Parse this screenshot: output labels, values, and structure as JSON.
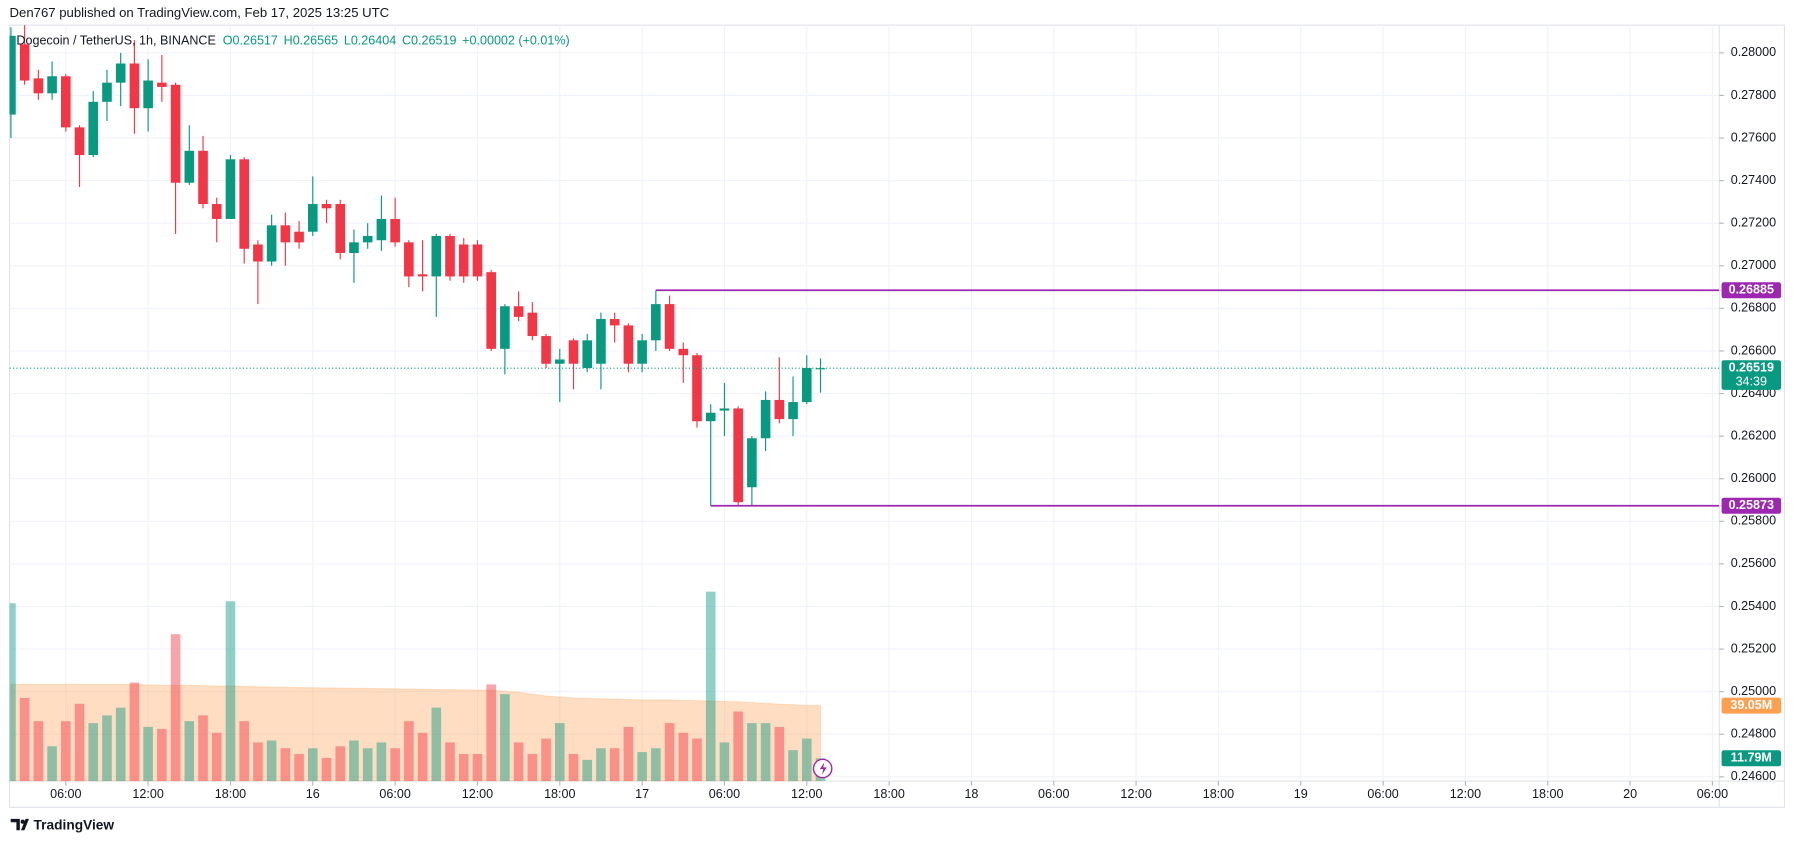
{
  "header": "Den767 published on TradingView.com, Feb 17, 2025 13:25 UTC",
  "footer": "TradingView",
  "chart_data": {
    "type": "candlestick",
    "title": "Dogecoin / TetherUS, 1h, BINANCE",
    "legend_values": [
      "O0.26517",
      "H0.26565",
      "L0.26404",
      "C0.26519",
      "+0.00002 (+0.01%)"
    ],
    "up_color": "#089981",
    "down_color": "#f23645",
    "grid": true,
    "x": [
      2,
      3,
      4,
      5,
      6,
      7,
      8,
      9,
      10,
      11,
      12,
      13,
      14,
      15,
      16,
      17,
      18,
      19,
      20,
      21,
      22,
      23,
      24,
      25,
      26,
      27,
      28,
      29,
      30,
      31,
      32,
      33,
      34,
      35,
      36,
      37,
      38,
      39,
      40,
      41,
      42,
      43,
      44,
      45,
      46,
      47,
      48,
      49,
      50,
      51,
      52,
      53,
      54,
      55,
      56,
      57,
      58,
      59,
      60,
      61
    ],
    "open": [
      0.2771,
      0.2804,
      0.2788,
      0.2781,
      0.2789,
      0.2765,
      0.2752,
      0.2777,
      0.2786,
      0.2795,
      0.2774,
      0.2786,
      0.2785,
      0.2739,
      0.2754,
      0.2729,
      0.2722,
      0.275,
      0.271,
      0.2702,
      0.2719,
      0.2716,
      0.2716,
      0.2729,
      0.2729,
      0.2706,
      0.2711,
      0.2712,
      0.2722,
      0.2711,
      0.2696,
      0.2695,
      0.2714,
      0.271,
      0.271,
      0.2697,
      0.2661,
      0.2681,
      0.2678,
      0.2667,
      0.2654,
      0.2665,
      0.2652,
      0.2654,
      0.2675,
      0.2672,
      0.2654,
      0.2665,
      0.2682,
      0.2661,
      0.2658,
      0.2627,
      0.2632,
      0.2633,
      0.2596,
      0.2619,
      0.2637,
      0.2628,
      0.2636,
      0.26517
    ],
    "high": [
      0.2812,
      0.2813,
      0.2792,
      0.2796,
      0.279,
      0.2766,
      0.2782,
      0.2792,
      0.28,
      0.2806,
      0.2797,
      0.2799,
      0.2786,
      0.2766,
      0.2761,
      0.2732,
      0.2752,
      0.2751,
      0.2712,
      0.2724,
      0.2725,
      0.2721,
      0.2742,
      0.2731,
      0.2731,
      0.2717,
      0.272,
      0.2733,
      0.2732,
      0.2712,
      0.2712,
      0.2715,
      0.2715,
      0.2713,
      0.2712,
      0.2698,
      0.2682,
      0.2688,
      0.2683,
      0.2668,
      0.2661,
      0.2666,
      0.2668,
      0.2678,
      0.2678,
      0.2673,
      0.2668,
      0.26885,
      0.2686,
      0.2664,
      0.2659,
      0.2635,
      0.2645,
      0.2634,
      0.262,
      0.2641,
      0.2657,
      0.2648,
      0.2658,
      0.26565
    ],
    "low": [
      0.276,
      0.2785,
      0.2778,
      0.2778,
      0.2763,
      0.2737,
      0.2751,
      0.2768,
      0.2775,
      0.2762,
      0.2763,
      0.2777,
      0.2715,
      0.2738,
      0.2727,
      0.2711,
      0.2722,
      0.2701,
      0.2682,
      0.27,
      0.27,
      0.2708,
      0.2714,
      0.272,
      0.2703,
      0.2692,
      0.2708,
      0.2707,
      0.2709,
      0.269,
      0.2688,
      0.2676,
      0.2693,
      0.2692,
      0.2693,
      0.266,
      0.2649,
      0.2674,
      0.2665,
      0.2652,
      0.2636,
      0.2642,
      0.265,
      0.2642,
      0.2664,
      0.265,
      0.265,
      0.266,
      0.266,
      0.2645,
      0.2624,
      0.25873,
      0.262,
      0.25873,
      0.25873,
      0.2613,
      0.2626,
      0.262,
      0.2635,
      0.26404
    ],
    "close": [
      0.2808,
      0.2787,
      0.2781,
      0.2789,
      0.2765,
      0.2752,
      0.2777,
      0.2786,
      0.2795,
      0.2774,
      0.2787,
      0.2784,
      0.2739,
      0.2754,
      0.2729,
      0.2722,
      0.275,
      0.2708,
      0.2702,
      0.2719,
      0.2711,
      0.2711,
      0.2729,
      0.2727,
      0.2706,
      0.2711,
      0.2714,
      0.2722,
      0.2711,
      0.2695,
      0.2695,
      0.2714,
      0.2695,
      0.2695,
      0.2695,
      0.2661,
      0.2681,
      0.2676,
      0.2667,
      0.2654,
      0.2656,
      0.2654,
      0.2665,
      0.2675,
      0.2672,
      0.2654,
      0.2665,
      0.2682,
      0.2661,
      0.2658,
      0.2627,
      0.2631,
      0.2633,
      0.2589,
      0.2619,
      0.2637,
      0.2628,
      0.2636,
      0.2652,
      0.26519
    ],
    "volume": [
      92,
      43,
      31,
      18,
      31,
      40,
      30,
      34,
      38,
      51,
      28,
      27,
      76,
      31,
      34,
      25,
      93,
      31,
      20,
      21,
      17,
      14,
      17,
      12,
      18,
      21,
      17,
      20,
      17,
      31,
      25,
      38,
      20,
      14,
      14,
      50,
      45,
      20,
      14,
      22,
      30,
      14,
      11,
      17,
      17,
      28,
      15,
      17,
      30,
      25,
      22,
      98,
      20,
      36,
      30,
      30,
      28,
      16,
      22,
      11.79
    ],
    "volume_ma": [
      50,
      50,
      50,
      50,
      50,
      50,
      50,
      50,
      50,
      50,
      49.8,
      49.6,
      49.5,
      49.5,
      49.4,
      49.2,
      49.2,
      49.0,
      48.8,
      48.6,
      48.5,
      48.4,
      48.3,
      48.2,
      48.1,
      48.0,
      47.9,
      47.8,
      47.7,
      47.6,
      47.5,
      47.4,
      47.3,
      47.2,
      47.1,
      47.0,
      46.5,
      46.0,
      45.0,
      44.0,
      43.5,
      43.0,
      42.8,
      42.6,
      42.4,
      42.2,
      42.0,
      42.0,
      42.0,
      41.8,
      41.6,
      41.4,
      41.2,
      41.0,
      40.6,
      40.2,
      39.8,
      39.5,
      39.2,
      39.05
    ],
    "volume_ma_color": "#ff9f50",
    "volume_label": {
      "value": 11.79,
      "label": "11.79M"
    },
    "volume_ma_label": {
      "value": 39.05,
      "label": "39.05M"
    },
    "volume_ylim": [
      0,
      391
    ],
    "countdown": "34:39",
    "levels": [
      {
        "value": 0.26885,
        "x": 49,
        "color": "#9c27b0"
      },
      {
        "value": 0.25873,
        "x": 53,
        "color": "#9c27b0"
      }
    ],
    "xlim": [
      1.9,
      126.5
    ],
    "xticks": [
      {
        "value": 6,
        "label": "06:00"
      },
      {
        "value": 12,
        "label": "12:00"
      },
      {
        "value": 18,
        "label": "18:00"
      },
      {
        "value": 24,
        "label": "16"
      },
      {
        "value": 30,
        "label": "06:00"
      },
      {
        "value": 36,
        "label": "12:00"
      },
      {
        "value": 42,
        "label": "18:00"
      },
      {
        "value": 48,
        "label": "17"
      },
      {
        "value": 54,
        "label": "06:00"
      },
      {
        "value": 60,
        "label": "12:00"
      },
      {
        "value": 66,
        "label": "18:00"
      },
      {
        "value": 72,
        "label": "18"
      },
      {
        "value": 78,
        "label": "06:00"
      },
      {
        "value": 84,
        "label": "12:00"
      },
      {
        "value": 90,
        "label": "18:00"
      },
      {
        "value": 96,
        "label": "19"
      },
      {
        "value": 102,
        "label": "06:00"
      },
      {
        "value": 108,
        "label": "12:00"
      },
      {
        "value": 114,
        "label": "18:00"
      },
      {
        "value": 120,
        "label": "20"
      },
      {
        "value": 126,
        "label": "06:00"
      }
    ],
    "ylim": [
      0.2458,
      0.2813
    ],
    "yticks": [
      {
        "value": 0.246,
        "label": "0.24600"
      },
      {
        "value": 0.248,
        "label": "0.24800"
      },
      {
        "value": 0.25,
        "label": "0.25000"
      },
      {
        "value": 0.252,
        "label": "0.25200"
      },
      {
        "value": 0.254,
        "label": "0.25400"
      },
      {
        "value": 0.256,
        "label": "0.25600"
      },
      {
        "value": 0.258,
        "label": "0.25800"
      },
      {
        "value": 0.26,
        "label": "0.26000"
      },
      {
        "value": 0.262,
        "label": "0.26200"
      },
      {
        "value": 0.264,
        "label": "0.26400"
      },
      {
        "value": 0.266,
        "label": "0.26600"
      },
      {
        "value": 0.268,
        "label": "0.26800"
      },
      {
        "value": 0.27,
        "label": "0.27000"
      },
      {
        "value": 0.272,
        "label": "0.27200"
      },
      {
        "value": 0.274,
        "label": "0.27400"
      },
      {
        "value": 0.276,
        "label": "0.27600"
      },
      {
        "value": 0.278,
        "label": "0.27800"
      },
      {
        "value": 0.28,
        "label": "0.28000"
      }
    ]
  }
}
